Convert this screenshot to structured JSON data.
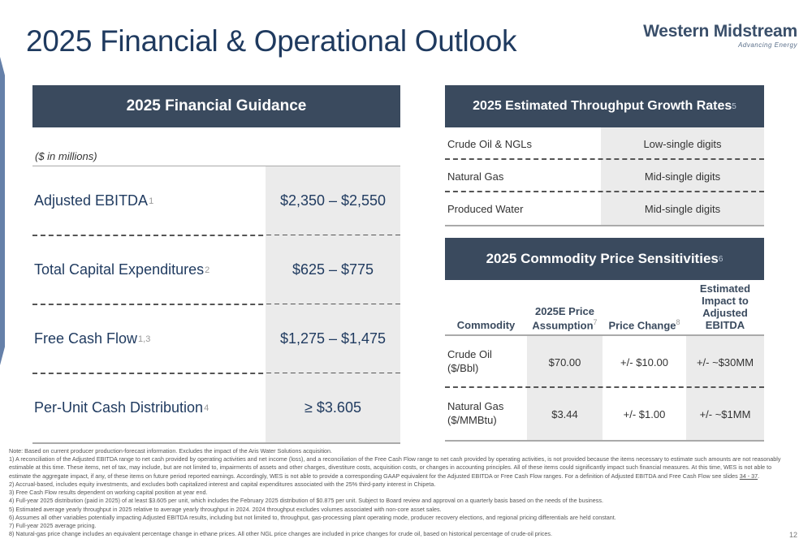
{
  "header": {
    "title": "2025 Financial & Operational Outlook",
    "logo_name": "Western Midstream",
    "logo_tagline": "Advancing Energy"
  },
  "financial_guidance": {
    "title": "2025 Financial Guidance",
    "units": "($ in millions)",
    "rows": [
      {
        "label": "Adjusted EBITDA",
        "note": "1",
        "value": "$2,350 – $2,550"
      },
      {
        "label": "Total Capital Expenditures",
        "note": "2",
        "value": "$625 – $775"
      },
      {
        "label": "Free Cash Flow",
        "note": "1,3",
        "value": "$1,275 – $1,475"
      },
      {
        "label": "Per-Unit Cash Distribution",
        "note": "4",
        "value": "≥ $3.605"
      }
    ]
  },
  "throughput": {
    "title": "2025 Estimated Throughput Growth Rates",
    "title_note": "5",
    "rows": [
      {
        "label": "Crude Oil & NGLs",
        "value": "Low-single digits"
      },
      {
        "label": "Natural Gas",
        "value": "Mid-single digits"
      },
      {
        "label": "Produced Water",
        "value": "Mid-single digits"
      }
    ]
  },
  "commodity": {
    "title": "2025 Commodity Price Sensitivities",
    "title_note": "6",
    "columns": {
      "commodity": "Commodity",
      "price": "2025E Price Assumption",
      "price_note": "7",
      "change": "Price Change",
      "change_note": "8",
      "impact": "Estimated Impact to Adjusted EBITDA"
    },
    "rows": [
      {
        "name_line1": "Crude Oil",
        "name_line2": "($/Bbl)",
        "price": "$70.00",
        "change": "+/- $10.00",
        "impact": "+/- ~$30MM"
      },
      {
        "name_line1": "Natural Gas",
        "name_line2": "($/MMBtu)",
        "price": "$3.44",
        "change": "+/- $1.00",
        "impact": "+/- ~$1MM"
      }
    ]
  },
  "notes": {
    "intro": "Note: Based on current producer production-forecast information. Excludes the impact of the Aris Water Solutions acquisition.",
    "n1": "1)  A reconciliation of the Adjusted EBITDA range to net cash provided by operating activities and net income (loss), and a reconciliation of the Free Cash Flow range to net cash provided by operating activities, is not provided because the items necessary to estimate such amounts are not reasonably estimable at this time. These items, net of tax, may include, but are not limited to, impairments of assets and other charges, divestiture costs, acquisition costs, or changes in accounting principles. All of these items could significantly impact such financial measures. At this time, WES is not able to estimate the aggregate impact, if any, of these items on future period reported earnings. Accordingly, WES is not able to provide a corresponding GAAP equivalent for the Adjusted EBITDA or Free Cash Flow ranges. For a definition of Adjusted EBITDA and Free Cash Flow see slides ",
    "n1_link": "34 - 37",
    "n1_end": ".",
    "n2": "2)  Accrual-based, includes equity investments, and excludes both capitalized interest and capital expenditures associated with the 25% third-party interest in Chipeta.",
    "n3": "3)  Free Cash Flow results dependent on working capital position at year end.",
    "n4": "4)  Full-year 2025 distribution (paid in 2025) of at least $3.605 per unit, which includes the February 2025 distribution of $0.875 per unit. Subject to Board review and approval on a quarterly basis based on the needs of the business.",
    "n5": "5)  Estimated average yearly throughput in 2025 relative to average yearly throughput in 2024. 2024 throughput excludes volumes associated with non-core asset sales.",
    "n6": "6)  Assumes all other variables potentially impacting Adjusted EBITDA results, including but not limited to, throughput, gas-processing plant operating mode, producer recovery elections, and regional pricing differentials are held constant.",
    "n7": "7)  Full-year 2025 average pricing.",
    "n8": "8)  Natural-gas price change includes an equivalent percentage change in ethane prices. All other NGL price changes are included in price changes for crude oil, based on historical percentage of crude-oil prices."
  },
  "page_number": "12"
}
